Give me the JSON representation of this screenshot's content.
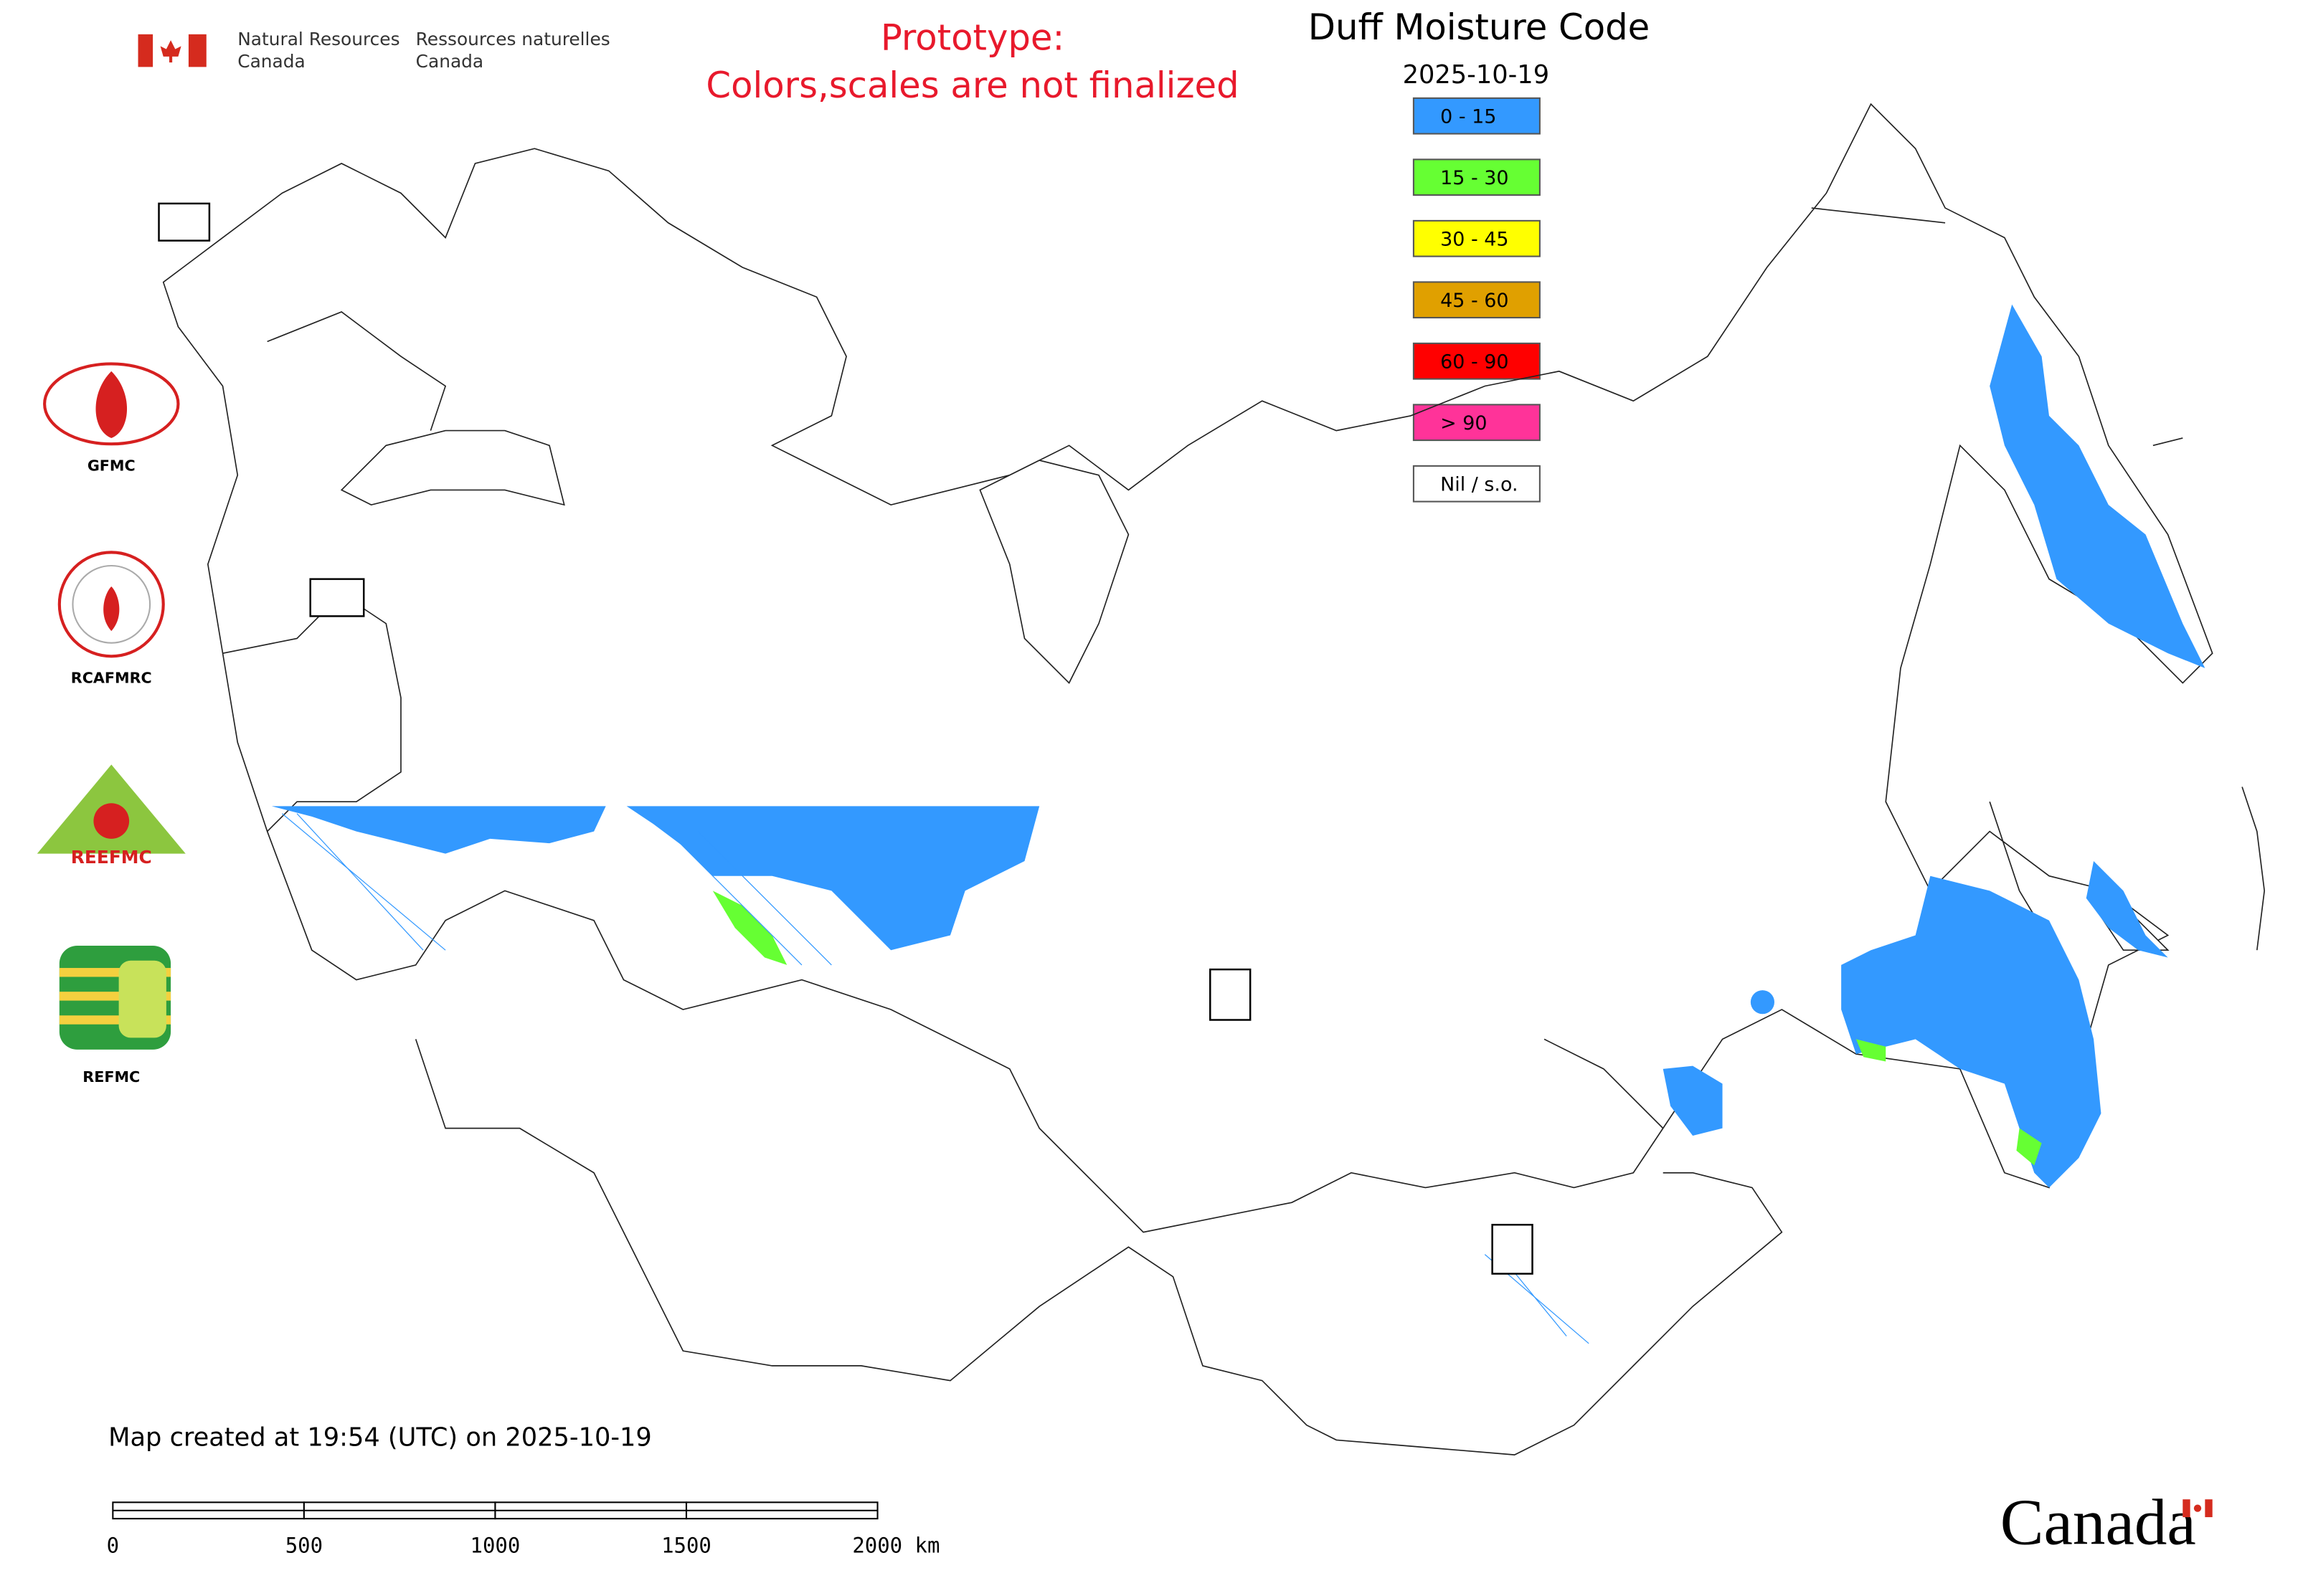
{
  "header": {
    "agency_en": [
      "Natural Resources",
      "Canada"
    ],
    "agency_fr": [
      "Ressources naturelles",
      "Canada"
    ],
    "notice": [
      "Prototype:",
      "Colors,scales are not finalized"
    ],
    "title": "Duff Moisture Code",
    "date": "2025-10-19"
  },
  "legend": [
    {
      "label": "0 - 15",
      "color": "#3399ff"
    },
    {
      "label": "15 - 30",
      "color": "#66ff33"
    },
    {
      "label": "30 - 45",
      "color": "#ffff00"
    },
    {
      "label": "45 - 60",
      "color": "#e0a000"
    },
    {
      "label": "60 - 90",
      "color": "#ff0000"
    },
    {
      "label": "> 90",
      "color": "#ff3399"
    },
    {
      "label": "Nil / s.o.",
      "color": "#ffffff"
    }
  ],
  "logos": [
    "GFMC",
    "RCAFMRC",
    "REEFMC",
    "REFMC"
  ],
  "footer": "Map created at 19:54 (UTC) on 2025-10-19",
  "scale_bar": [
    "0",
    "500",
    "1000",
    "1500",
    "2000 km"
  ],
  "wordmark": "Canada"
}
